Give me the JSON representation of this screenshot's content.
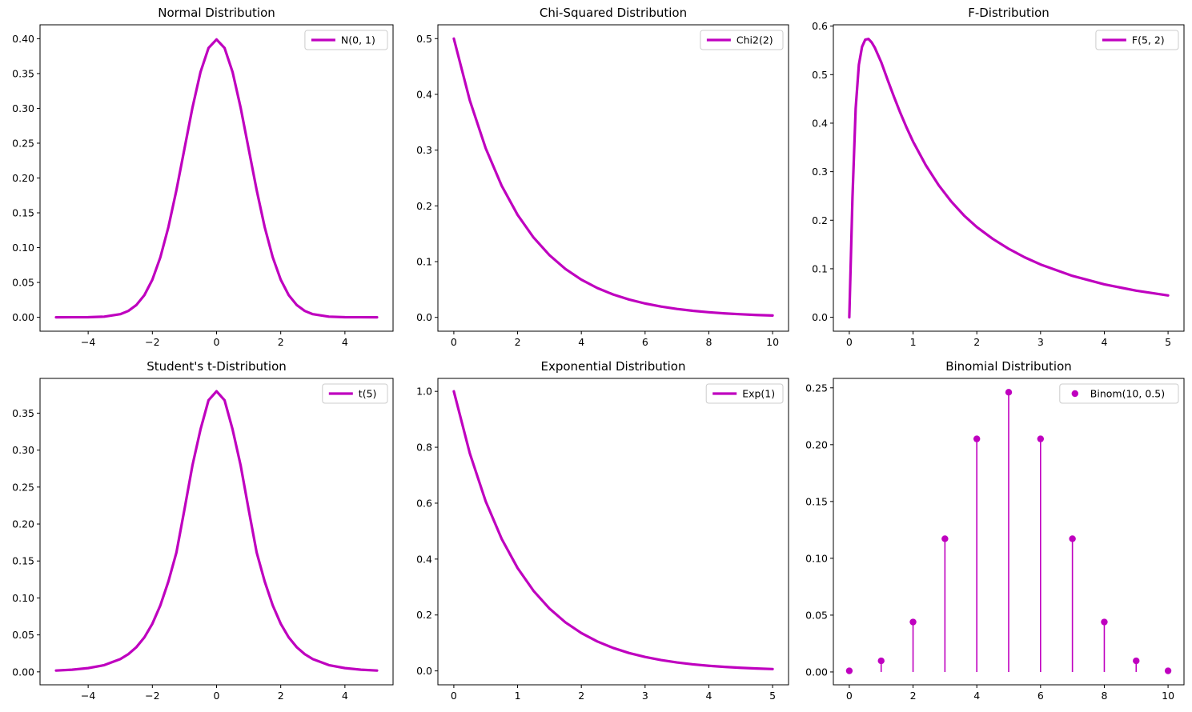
{
  "figure": {
    "line_color": "#bf00bf"
  },
  "chart_data": [
    {
      "id": "normal",
      "type": "line",
      "title": "Normal Distribution",
      "legend": "N(0, 1)",
      "legend_position": "top-right",
      "xlim": [
        -5.5,
        5.5
      ],
      "ylim": [
        -0.02,
        0.42
      ],
      "xticks": [
        -4,
        -2,
        0,
        2,
        4
      ],
      "xtick_labels": [
        "−4",
        "−2",
        "0",
        "2",
        "4"
      ],
      "yticks": [
        0,
        0.05,
        0.1,
        0.15,
        0.2,
        0.25,
        0.3,
        0.35,
        0.4
      ],
      "ytick_labels": [
        "0.00",
        "0.05",
        "0.10",
        "0.15",
        "0.20",
        "0.25",
        "0.30",
        "0.35",
        "0.40"
      ],
      "x": [
        -5,
        -4.5,
        -4,
        -3.5,
        -3,
        -2.75,
        -2.5,
        -2.25,
        -2,
        -1.75,
        -1.5,
        -1.25,
        -1,
        -0.75,
        -0.5,
        -0.25,
        0,
        0.25,
        0.5,
        0.75,
        1,
        1.25,
        1.5,
        1.75,
        2,
        2.25,
        2.5,
        2.75,
        3,
        3.5,
        4,
        4.5,
        5
      ],
      "y": [
        1.5e-06,
        1.6e-05,
        0.000134,
        0.000873,
        0.00443,
        0.00909,
        0.01753,
        0.03174,
        0.05399,
        0.08628,
        0.12952,
        0.18265,
        0.24197,
        0.30114,
        0.35207,
        0.38667,
        0.39894,
        0.38667,
        0.35207,
        0.30114,
        0.24197,
        0.18265,
        0.12952,
        0.08628,
        0.05399,
        0.03174,
        0.01753,
        0.00909,
        0.00443,
        0.000873,
        0.000134,
        1.6e-05,
        1.5e-06
      ]
    },
    {
      "id": "chi2",
      "type": "line",
      "title": "Chi-Squared Distribution",
      "legend": "Chi2(2)",
      "legend_position": "top-right",
      "xlim": [
        -0.5,
        10.5
      ],
      "ylim": [
        -0.0248,
        0.5248
      ],
      "xticks": [
        0,
        2,
        4,
        6,
        8,
        10
      ],
      "xtick_labels": [
        "0",
        "2",
        "4",
        "6",
        "8",
        "10"
      ],
      "yticks": [
        0,
        0.1,
        0.2,
        0.3,
        0.4,
        0.5
      ],
      "ytick_labels": [
        "0.0",
        "0.1",
        "0.2",
        "0.3",
        "0.4",
        "0.5"
      ],
      "x": [
        0,
        0.5,
        1,
        1.5,
        2,
        2.5,
        3,
        3.5,
        4,
        4.5,
        5,
        5.5,
        6,
        6.5,
        7,
        7.5,
        8,
        8.5,
        9,
        9.5,
        10
      ],
      "y": [
        0.5,
        0.3894,
        0.3033,
        0.2362,
        0.1839,
        0.1433,
        0.1116,
        0.0869,
        0.0677,
        0.0527,
        0.041,
        0.032,
        0.0249,
        0.0194,
        0.0151,
        0.0118,
        0.0092,
        0.0071,
        0.0056,
        0.0043,
        0.0034
      ]
    },
    {
      "id": "f",
      "type": "line",
      "title": "F-Distribution",
      "legend": "F(5, 2)",
      "legend_position": "top-right",
      "xlim": [
        -0.25,
        5.25
      ],
      "ylim": [
        -0.0287,
        0.6027
      ],
      "xticks": [
        0,
        1,
        2,
        3,
        4,
        5
      ],
      "xtick_labels": [
        "0",
        "1",
        "2",
        "3",
        "4",
        "5"
      ],
      "yticks": [
        0,
        0.1,
        0.2,
        0.3,
        0.4,
        0.5,
        0.6
      ],
      "ytick_labels": [
        "0.0",
        "0.1",
        "0.2",
        "0.3",
        "0.4",
        "0.5",
        "0.6"
      ],
      "x": [
        0,
        0.05,
        0.1,
        0.15,
        0.2,
        0.25,
        0.3,
        0.35,
        0.4,
        0.5,
        0.6,
        0.7,
        0.8,
        0.9,
        1,
        1.2,
        1.4,
        1.6,
        1.8,
        2,
        2.25,
        2.5,
        2.75,
        3,
        3.5,
        4,
        4.5,
        5
      ],
      "y": [
        0,
        0.2472,
        0.4307,
        0.5204,
        0.5575,
        0.5721,
        0.5736,
        0.5667,
        0.5556,
        0.5259,
        0.4897,
        0.4547,
        0.4213,
        0.3905,
        0.3621,
        0.3133,
        0.2725,
        0.2384,
        0.2097,
        0.1859,
        0.1616,
        0.1411,
        0.1236,
        0.1088,
        0.0853,
        0.0678,
        0.0548,
        0.045
      ]
    },
    {
      "id": "t",
      "type": "line",
      "title": "Student's t-Distribution",
      "legend": "t(5)",
      "legend_position": "top-right",
      "xlim": [
        -5.5,
        5.5
      ],
      "ylim": [
        -0.0175,
        0.397
      ],
      "xticks": [
        -4,
        -2,
        0,
        2,
        4
      ],
      "xtick_labels": [
        "−4",
        "−2",
        "0",
        "2",
        "4"
      ],
      "yticks": [
        0,
        0.05,
        0.1,
        0.15,
        0.2,
        0.25,
        0.3,
        0.35
      ],
      "ytick_labels": [
        "0.00",
        "0.05",
        "0.10",
        "0.15",
        "0.20",
        "0.25",
        "0.30",
        "0.35"
      ],
      "x": [
        -5,
        -4.5,
        -4,
        -3.5,
        -3,
        -2.75,
        -2.5,
        -2.25,
        -2,
        -1.75,
        -1.5,
        -1.25,
        -1,
        -0.75,
        -0.5,
        -0.25,
        0,
        0.25,
        0.5,
        0.75,
        1,
        1.25,
        1.5,
        1.75,
        2,
        2.25,
        2.5,
        2.75,
        3,
        3.5,
        4,
        4.5,
        5
      ],
      "y": [
        0.0018,
        0.0029,
        0.0051,
        0.0091,
        0.0173,
        0.0239,
        0.0333,
        0.0466,
        0.0651,
        0.0901,
        0.1223,
        0.1615,
        0.2197,
        0.2795,
        0.3279,
        0.3675,
        0.3796,
        0.3675,
        0.3279,
        0.2795,
        0.2197,
        0.1615,
        0.1223,
        0.0901,
        0.0651,
        0.0466,
        0.0333,
        0.0239,
        0.0173,
        0.0091,
        0.0051,
        0.0029,
        0.0018
      ]
    },
    {
      "id": "exp",
      "type": "line",
      "title": "Exponential Distribution",
      "legend": "Exp(1)",
      "legend_position": "top-right",
      "xlim": [
        -0.25,
        5.25
      ],
      "ylim": [
        -0.0497,
        1.0463
      ],
      "xticks": [
        0,
        1,
        2,
        3,
        4,
        5
      ],
      "xtick_labels": [
        "0",
        "1",
        "2",
        "3",
        "4",
        "5"
      ],
      "yticks": [
        0,
        0.2,
        0.4,
        0.6,
        0.8,
        1.0
      ],
      "ytick_labels": [
        "0.0",
        "0.2",
        "0.4",
        "0.6",
        "0.8",
        "1.0"
      ],
      "x": [
        0,
        0.25,
        0.5,
        0.75,
        1,
        1.25,
        1.5,
        1.75,
        2,
        2.25,
        2.5,
        2.75,
        3,
        3.25,
        3.5,
        3.75,
        4,
        4.25,
        4.5,
        4.75,
        5
      ],
      "y": [
        1.0,
        0.7788,
        0.6065,
        0.4724,
        0.3679,
        0.2865,
        0.2231,
        0.1738,
        0.1353,
        0.1054,
        0.0821,
        0.0639,
        0.0498,
        0.0388,
        0.0302,
        0.0235,
        0.0183,
        0.0143,
        0.0111,
        0.0087,
        0.0067
      ]
    },
    {
      "id": "binom",
      "type": "stem",
      "title": "Binomial Distribution",
      "legend": "Binom(10, 0.5)",
      "legend_position": "top-right",
      "xlim": [
        -0.5,
        10.5
      ],
      "ylim": [
        -0.0113,
        0.2583
      ],
      "xticks": [
        0,
        2,
        4,
        6,
        8,
        10
      ],
      "xtick_labels": [
        "0",
        "2",
        "4",
        "6",
        "8",
        "10"
      ],
      "yticks": [
        0,
        0.05,
        0.1,
        0.15,
        0.2,
        0.25
      ],
      "ytick_labels": [
        "0.00",
        "0.05",
        "0.10",
        "0.15",
        "0.20",
        "0.25"
      ],
      "x": [
        0,
        1,
        2,
        3,
        4,
        5,
        6,
        7,
        8,
        9,
        10
      ],
      "y": [
        0.000977,
        0.009766,
        0.043945,
        0.117188,
        0.205078,
        0.246094,
        0.205078,
        0.117188,
        0.043945,
        0.009766,
        0.000977
      ]
    }
  ]
}
